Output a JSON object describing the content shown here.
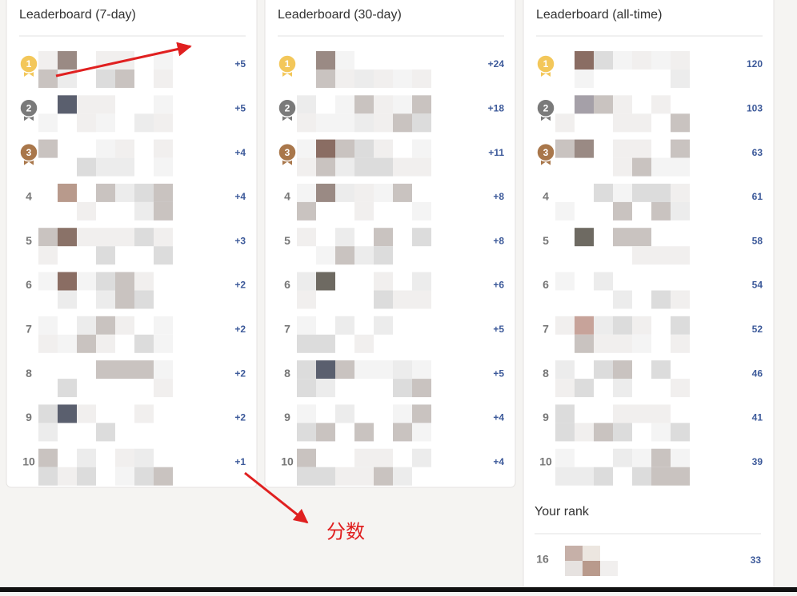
{
  "panels": [
    {
      "title": "Leaderboard (7-day)",
      "rows": [
        {
          "rank": 1,
          "score": "+5"
        },
        {
          "rank": 2,
          "score": "+5"
        },
        {
          "rank": 3,
          "score": "+4"
        },
        {
          "rank": 4,
          "score": "+4"
        },
        {
          "rank": 5,
          "score": "+3"
        },
        {
          "rank": 6,
          "score": "+2"
        },
        {
          "rank": 7,
          "score": "+2"
        },
        {
          "rank": 8,
          "score": "+2"
        },
        {
          "rank": 9,
          "score": "+2"
        },
        {
          "rank": 10,
          "score": "+1"
        }
      ]
    },
    {
      "title": "Leaderboard (30-day)",
      "rows": [
        {
          "rank": 1,
          "score": "+24"
        },
        {
          "rank": 2,
          "score": "+18"
        },
        {
          "rank": 3,
          "score": "+11"
        },
        {
          "rank": 4,
          "score": "+8"
        },
        {
          "rank": 5,
          "score": "+8"
        },
        {
          "rank": 6,
          "score": "+6"
        },
        {
          "rank": 7,
          "score": "+5"
        },
        {
          "rank": 8,
          "score": "+5"
        },
        {
          "rank": 9,
          "score": "+4"
        },
        {
          "rank": 10,
          "score": "+4"
        }
      ]
    },
    {
      "title": "Leaderboard (all-time)",
      "rows": [
        {
          "rank": 1,
          "score": 120
        },
        {
          "rank": 2,
          "score": 103
        },
        {
          "rank": 3,
          "score": 63
        },
        {
          "rank": 4,
          "score": 61
        },
        {
          "rank": 5,
          "score": 58
        },
        {
          "rank": 6,
          "score": 54
        },
        {
          "rank": 7,
          "score": 52
        },
        {
          "rank": 8,
          "score": 46
        },
        {
          "rank": 9,
          "score": 41
        },
        {
          "rank": 10,
          "score": 39
        }
      ]
    }
  ],
  "your_rank": {
    "title": "Your rank",
    "rank": 16,
    "score": 33
  },
  "annotation": "分数"
}
